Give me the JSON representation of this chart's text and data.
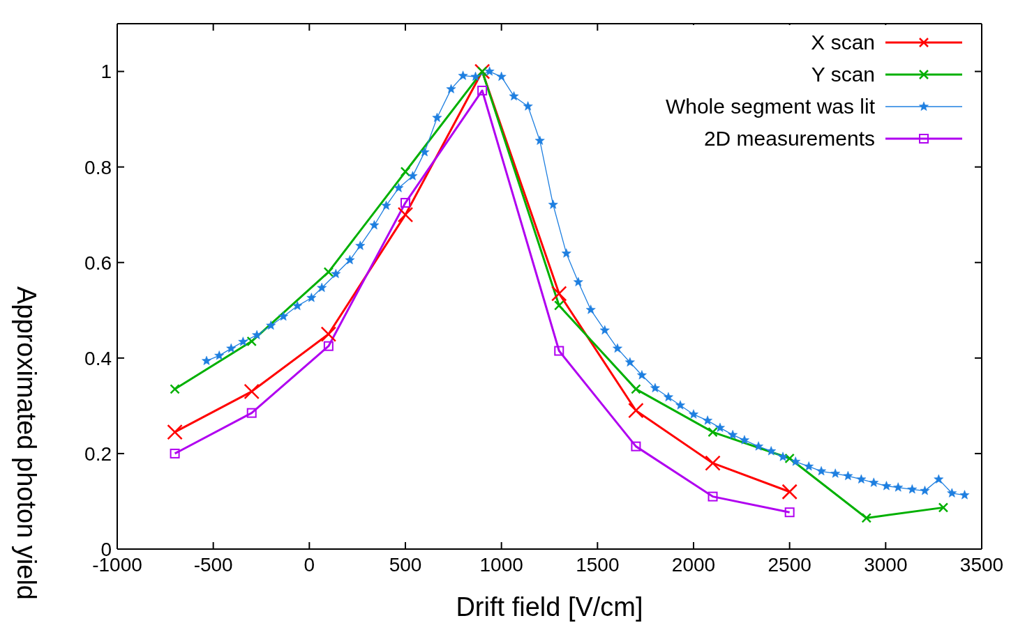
{
  "chart_data": {
    "type": "line",
    "xlabel": "Drift field  [V/cm]",
    "ylabel": "Approximated photon yield",
    "xlim": [
      -1000,
      3500
    ],
    "ylim": [
      0,
      1.1
    ],
    "xticks": [
      -1000,
      -500,
      0,
      500,
      1000,
      1500,
      2000,
      2500,
      3000,
      3500
    ],
    "yticks": [
      0,
      0.2,
      0.4,
      0.6,
      0.8,
      1
    ],
    "legend": "top right",
    "line_style": "solid",
    "series": [
      {
        "name": "X scan",
        "color": "#ff0000",
        "marker": "cross",
        "x": [
          -700,
          -300,
          100,
          500,
          900,
          1300,
          1700,
          2100,
          2500
        ],
        "values": [
          0.245,
          0.33,
          0.45,
          0.7,
          1.0,
          0.535,
          0.29,
          0.18,
          0.12
        ]
      },
      {
        "name": "Y scan",
        "color": "#00b000",
        "marker": "cross",
        "x": [
          -700,
          -300,
          100,
          500,
          900,
          1300,
          1700,
          2100,
          2500,
          2900,
          3300
        ],
        "values": [
          0.335,
          0.435,
          0.58,
          0.79,
          1.0,
          0.51,
          0.335,
          0.245,
          0.19,
          0.065,
          0.087
        ]
      },
      {
        "name": "Whole segment was lit",
        "color": "#1e7fe0",
        "marker": "star",
        "x": [
          -535,
          -469,
          -407,
          -345,
          -273,
          -200,
          -135,
          -62,
          11,
          65,
          138,
          211,
          265,
          338,
          400,
          465,
          538,
          600,
          665,
          738,
          800,
          865,
          938,
          1000,
          1065,
          1138,
          1200,
          1269,
          1338,
          1400,
          1465,
          1538,
          1604,
          1669,
          1731,
          1800,
          1869,
          1931,
          2000,
          2073,
          2138,
          2204,
          2265,
          2338,
          2404,
          2465,
          2531,
          2600,
          2665,
          2738,
          2804,
          2873,
          2938,
          3004,
          3065,
          3138,
          3204,
          3276,
          3345,
          3411
        ],
        "values": [
          0.394,
          0.405,
          0.42,
          0.434,
          0.448,
          0.468,
          0.487,
          0.509,
          0.526,
          0.547,
          0.576,
          0.605,
          0.635,
          0.678,
          0.719,
          0.756,
          0.781,
          0.831,
          0.903,
          0.963,
          0.991,
          0.989,
          1.0,
          0.989,
          0.948,
          0.927,
          0.855,
          0.721,
          0.619,
          0.559,
          0.501,
          0.458,
          0.42,
          0.391,
          0.364,
          0.337,
          0.318,
          0.301,
          0.282,
          0.269,
          0.254,
          0.239,
          0.228,
          0.215,
          0.205,
          0.193,
          0.183,
          0.173,
          0.163,
          0.158,
          0.153,
          0.146,
          0.139,
          0.132,
          0.129,
          0.125,
          0.122,
          0.146,
          0.117,
          0.113
        ]
      },
      {
        "name": "2D measurements",
        "color": "#b000f0",
        "marker": "square",
        "x": [
          -700,
          -300,
          100,
          500,
          900,
          1300,
          1700,
          2100,
          2500
        ],
        "values": [
          0.2,
          0.285,
          0.425,
          0.725,
          0.96,
          0.415,
          0.215,
          0.11,
          0.077
        ]
      }
    ]
  }
}
